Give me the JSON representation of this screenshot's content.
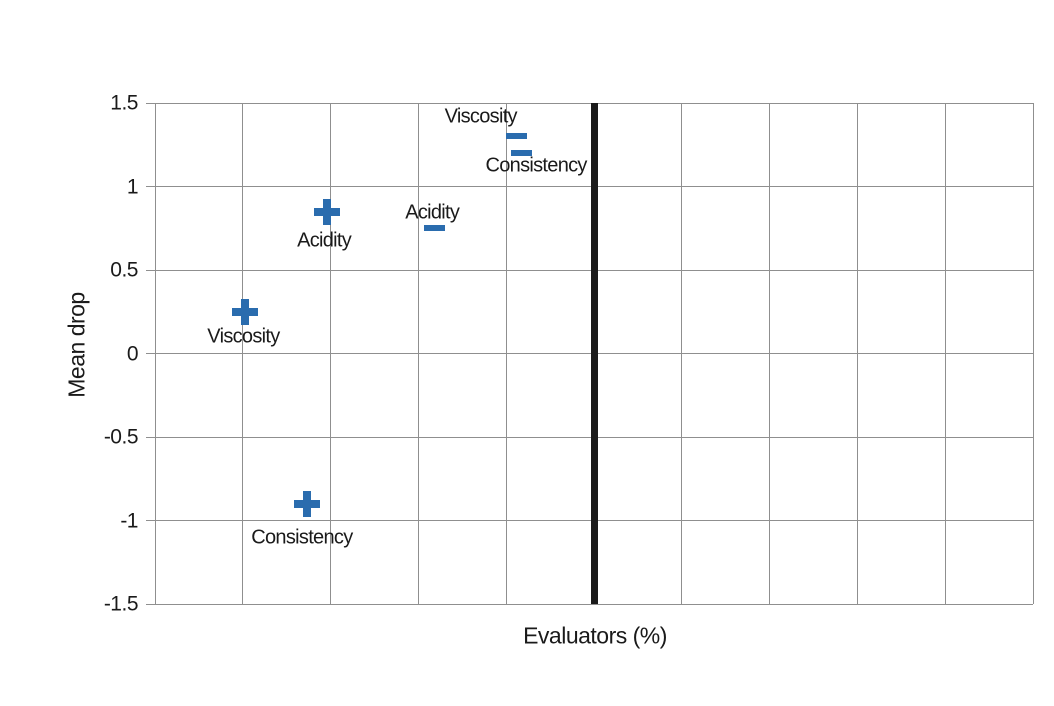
{
  "chart_data": {
    "type": "scatter",
    "title": "",
    "xlabel": "Evaluators (%)",
    "ylabel": "Mean drop",
    "xlim": [
      0,
      100
    ],
    "ylim": [
      -1.5,
      1.5
    ],
    "grid": true,
    "x_tick_labels_visible": false,
    "x_gridline_values": [
      0,
      10,
      20,
      30,
      40,
      50,
      60,
      70,
      80,
      90,
      100
    ],
    "y_gridline_values": [
      1.5,
      1,
      0.5,
      0,
      -0.5,
      -1,
      -1.5
    ],
    "y_tick_labels": [
      "1.5",
      "1",
      "0.5",
      "0",
      "-0.5",
      "-1",
      "-1.5"
    ],
    "reference_line": {
      "axis": "x",
      "value": 50
    },
    "series": [
      {
        "name": "plus-markers",
        "marker": "plus",
        "points": [
          {
            "label": "Acidity",
            "x": 19.6,
            "y": 0.85,
            "label_offset": [
              -3,
              29
            ]
          },
          {
            "label": "Viscosity",
            "x": 10.3,
            "y": 0.25,
            "label_offset": [
              -2,
              25
            ]
          },
          {
            "label": "Consistency",
            "x": 17.3,
            "y": -0.9,
            "label_offset": [
              -5,
              34
            ]
          }
        ]
      },
      {
        "name": "minus-markers",
        "marker": "minus",
        "points": [
          {
            "label": "Viscosity",
            "x": 41.2,
            "y": 1.3,
            "label_offset": [
              -36,
              -19
            ]
          },
          {
            "label": "Consistency",
            "x": 41.7,
            "y": 1.2,
            "label_offset": [
              15,
              13
            ]
          },
          {
            "label": "Acidity",
            "x": 31.8,
            "y": 0.75,
            "label_offset": [
              -2,
              -15
            ]
          }
        ]
      }
    ],
    "colors": {
      "marker": "#2a6cae",
      "gridline": "#8f8f8f",
      "reference_line": "#1a1a1a",
      "text": "#1a1a1a",
      "background": "#ffffff"
    }
  }
}
